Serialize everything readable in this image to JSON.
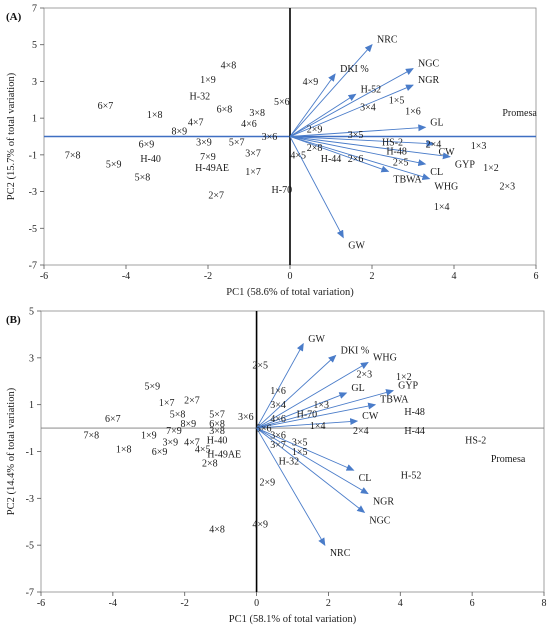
{
  "chart_data": [
    {
      "type": "scatter",
      "panel_label": "(A)",
      "xlabel": "PC1 (58.6% of total variation)",
      "ylabel": "PC2 (15.7% of total variation)",
      "xlim": [
        -6,
        6
      ],
      "ylim": [
        -7,
        7
      ],
      "xticks": [
        -6,
        -4,
        -2,
        0,
        2,
        4,
        6
      ],
      "yticks": [
        -7,
        -5,
        -3,
        -1,
        1,
        3,
        5,
        7
      ],
      "points": [
        {
          "label": "4×8",
          "x": -1.5,
          "y": 3.9
        },
        {
          "label": "1×9",
          "x": -2.0,
          "y": 3.1
        },
        {
          "label": "4×9",
          "x": 0.5,
          "y": 3.0
        },
        {
          "label": "6×7",
          "x": -4.5,
          "y": 1.7
        },
        {
          "label": "H-32",
          "x": -2.2,
          "y": 2.2
        },
        {
          "label": "5×6",
          "x": -0.2,
          "y": 1.9
        },
        {
          "label": "6×8",
          "x": -1.6,
          "y": 1.5
        },
        {
          "label": "3×8",
          "x": -0.8,
          "y": 1.3
        },
        {
          "label": "1×8",
          "x": -3.3,
          "y": 1.2
        },
        {
          "label": "4×7",
          "x": -2.3,
          "y": 0.8
        },
        {
          "label": "4×6",
          "x": -1.0,
          "y": 0.7
        },
        {
          "label": "8×9",
          "x": -2.7,
          "y": 0.3
        },
        {
          "label": "3×6",
          "x": -0.5,
          "y": 0.0
        },
        {
          "label": "6×9",
          "x": -3.5,
          "y": -0.4
        },
        {
          "label": "3×9",
          "x": -2.1,
          "y": -0.3
        },
        {
          "label": "5×7",
          "x": -1.3,
          "y": -0.3
        },
        {
          "label": "7×8",
          "x": -5.3,
          "y": -1.0
        },
        {
          "label": "H-40",
          "x": -3.4,
          "y": -1.2
        },
        {
          "label": "7×9",
          "x": -2.0,
          "y": -1.1
        },
        {
          "label": "3×7",
          "x": -0.9,
          "y": -0.9
        },
        {
          "label": "4×5",
          "x": 0.2,
          "y": -1.0
        },
        {
          "label": "5×9",
          "x": -4.3,
          "y": -1.5
        },
        {
          "label": "H-49AE",
          "x": -1.9,
          "y": -1.7
        },
        {
          "label": "1×7",
          "x": -0.9,
          "y": -1.9
        },
        {
          "label": "5×8",
          "x": -3.6,
          "y": -2.2
        },
        {
          "label": "2×7",
          "x": -1.8,
          "y": -3.2
        },
        {
          "label": "H-70",
          "x": -0.2,
          "y": -2.9
        },
        {
          "label": "1×5",
          "x": 2.6,
          "y": 2.0
        },
        {
          "label": "1×6",
          "x": 3.0,
          "y": 1.4
        },
        {
          "label": "3×4",
          "x": 1.9,
          "y": 1.6
        },
        {
          "label": "2×9",
          "x": 0.6,
          "y": 0.4
        },
        {
          "label": "3×5",
          "x": 1.6,
          "y": 0.1
        },
        {
          "label": "2×8",
          "x": 0.6,
          "y": -0.6
        },
        {
          "label": "H-44",
          "x": 1.0,
          "y": -1.2
        },
        {
          "label": "2×6",
          "x": 1.6,
          "y": -1.2
        },
        {
          "label": "HS-2",
          "x": 2.5,
          "y": -0.3
        },
        {
          "label": "H-48",
          "x": 2.6,
          "y": -0.8
        },
        {
          "label": "2×5",
          "x": 2.7,
          "y": -1.4
        },
        {
          "label": "2×4",
          "x": 3.5,
          "y": -0.4
        },
        {
          "label": "1×3",
          "x": 4.6,
          "y": -0.5
        },
        {
          "label": "1×2",
          "x": 4.9,
          "y": -1.7
        },
        {
          "label": "2×3",
          "x": 5.3,
          "y": -2.7
        },
        {
          "label": "1×4",
          "x": 3.7,
          "y": -3.8
        },
        {
          "label": "Promesa",
          "x": 5.6,
          "y": 1.3
        }
      ],
      "vectors": [
        {
          "label": "NRC",
          "x": 2.0,
          "y": 5.0
        },
        {
          "label": "NGC",
          "x": 3.0,
          "y": 3.7
        },
        {
          "label": "NGR",
          "x": 3.0,
          "y": 2.8
        },
        {
          "label": "DKI %",
          "x": 1.1,
          "y": 3.4
        },
        {
          "label": "H-52",
          "x": 1.6,
          "y": 2.3
        },
        {
          "label": "GL",
          "x": 3.3,
          "y": 0.5
        },
        {
          "label": "CW",
          "x": 3.5,
          "y": -0.4
        },
        {
          "label": "GYP",
          "x": 3.9,
          "y": -1.1
        },
        {
          "label": "CL",
          "x": 3.3,
          "y": -1.5
        },
        {
          "label": "TBWA",
          "x": 2.4,
          "y": -1.9
        },
        {
          "label": "WHG",
          "x": 3.4,
          "y": -2.3
        },
        {
          "label": "GW",
          "x": 1.3,
          "y": -5.5
        }
      ]
    },
    {
      "type": "scatter",
      "panel_label": "(B)",
      "xlabel": "PC1 (58.1% of total variation)",
      "ylabel": "PC2 (14.4% of total variation)",
      "xlim": [
        -6,
        8
      ],
      "ylim": [
        -7,
        5
      ],
      "xticks": [
        -6,
        -4,
        -2,
        0,
        2,
        4,
        6,
        8
      ],
      "yticks": [
        -7,
        -5,
        -3,
        -1,
        1,
        3,
        5
      ],
      "points": [
        {
          "label": "2×5",
          "x": 0.1,
          "y": 2.7
        },
        {
          "label": "5×9",
          "x": -2.9,
          "y": 1.8
        },
        {
          "label": "1×7",
          "x": -2.5,
          "y": 1.1
        },
        {
          "label": "2×7",
          "x": -1.8,
          "y": 1.2
        },
        {
          "label": "5×8",
          "x": -2.2,
          "y": 0.6
        },
        {
          "label": "5×7",
          "x": -1.1,
          "y": 0.6
        },
        {
          "label": "3×6",
          "x": -0.3,
          "y": 0.5
        },
        {
          "label": "6×7",
          "x": -4.0,
          "y": 0.4
        },
        {
          "label": "6×8",
          "x": -1.1,
          "y": 0.2
        },
        {
          "label": "8×9",
          "x": -1.9,
          "y": 0.2
        },
        {
          "label": "7×9",
          "x": -2.3,
          "y": -0.1
        },
        {
          "label": "3×8",
          "x": -1.1,
          "y": -0.1
        },
        {
          "label": "7×8",
          "x": -4.6,
          "y": -0.3
        },
        {
          "label": "1×9",
          "x": -3.0,
          "y": -0.3
        },
        {
          "label": "H-40",
          "x": -1.1,
          "y": -0.5
        },
        {
          "label": "3×9",
          "x": -2.4,
          "y": -0.6
        },
        {
          "label": "4×7",
          "x": -1.8,
          "y": -0.6
        },
        {
          "label": "1×8",
          "x": -3.7,
          "y": -0.9
        },
        {
          "label": "6×9",
          "x": -2.7,
          "y": -1.0
        },
        {
          "label": "4×5",
          "x": -1.5,
          "y": -0.9
        },
        {
          "label": "H-49AE",
          "x": -0.9,
          "y": -1.1
        },
        {
          "label": "2×8",
          "x": -1.3,
          "y": -1.5
        },
        {
          "label": "4×8",
          "x": -1.1,
          "y": -4.3
        },
        {
          "label": "1×6",
          "x": 0.6,
          "y": 1.6
        },
        {
          "label": "3×4",
          "x": 0.6,
          "y": 1.0
        },
        {
          "label": "H-70",
          "x": 1.4,
          "y": 0.6
        },
        {
          "label": "4×6",
          "x": 0.6,
          "y": 0.4
        },
        {
          "label": "5×6",
          "x": 0.2,
          "y": 0.0
        },
        {
          "label": "3×6",
          "x": 0.6,
          "y": -0.3
        },
        {
          "label": "3×7",
          "x": 0.6,
          "y": -0.7
        },
        {
          "label": "3×5",
          "x": 1.2,
          "y": -0.6
        },
        {
          "label": "1×5",
          "x": 1.2,
          "y": -1.0
        },
        {
          "label": "1×4",
          "x": 1.7,
          "y": 0.1
        },
        {
          "label": "1×3",
          "x": 1.8,
          "y": 1.0
        },
        {
          "label": "H-32",
          "x": 0.9,
          "y": -1.4
        },
        {
          "label": "2×9",
          "x": 0.3,
          "y": -2.3
        },
        {
          "label": "4×9",
          "x": 0.1,
          "y": -4.1
        },
        {
          "label": "2×3",
          "x": 3.0,
          "y": 2.3
        },
        {
          "label": "1×2",
          "x": 4.1,
          "y": 2.2
        },
        {
          "label": "2×4",
          "x": 2.9,
          "y": -0.1
        },
        {
          "label": "H-48",
          "x": 4.4,
          "y": 0.7
        },
        {
          "label": "H-44",
          "x": 4.4,
          "y": -0.1
        },
        {
          "label": "HS-2",
          "x": 6.1,
          "y": -0.5
        },
        {
          "label": "H-52",
          "x": 4.3,
          "y": -2.0
        },
        {
          "label": "Promesa",
          "x": 7.0,
          "y": -1.3
        }
      ],
      "vectors": [
        {
          "label": "GW",
          "x": 1.3,
          "y": 3.6
        },
        {
          "label": "DKI %",
          "x": 2.2,
          "y": 3.1
        },
        {
          "label": "WHG",
          "x": 3.1,
          "y": 2.8
        },
        {
          "label": "GL",
          "x": 2.5,
          "y": 1.5
        },
        {
          "label": "GYP",
          "x": 3.8,
          "y": 1.6
        },
        {
          "label": "TBWA",
          "x": 3.3,
          "y": 1.0
        },
        {
          "label": "CW",
          "x": 2.8,
          "y": 0.3
        },
        {
          "label": "CL",
          "x": 2.7,
          "y": -1.8
        },
        {
          "label": "NGR",
          "x": 3.1,
          "y": -2.8
        },
        {
          "label": "NGC",
          "x": 3.0,
          "y": -3.6
        },
        {
          "label": "NRC",
          "x": 1.9,
          "y": -5.0
        }
      ]
    }
  ]
}
